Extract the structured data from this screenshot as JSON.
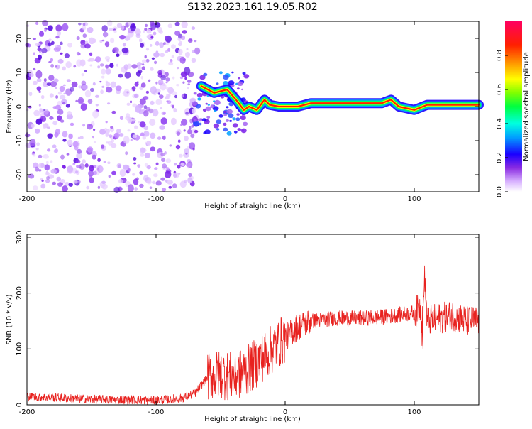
{
  "page_title": "S132.2023.161.19.05.R02",
  "colorbar": {
    "label": "Normalized spectral amplitude",
    "ticks": [
      "0.0",
      "0.2",
      "0.4",
      "0.6",
      "0.8"
    ],
    "tick_values": [
      0.0,
      0.2,
      0.4,
      0.6,
      0.8
    ],
    "range": [
      0,
      1
    ]
  },
  "chart_data": [
    {
      "type": "heatmap",
      "xlabel": "Height of straight line (km)",
      "ylabel": "Frequency (Hz)",
      "xlim": [
        -200,
        150
      ],
      "ylim": [
        -25,
        25
      ],
      "x_ticks": [
        "-200",
        "-100",
        "0",
        "100"
      ],
      "x_tick_values": [
        -200,
        -100,
        0,
        100
      ],
      "y_ticks": [
        "-20",
        "-10",
        "0",
        "10",
        "20"
      ],
      "y_tick_values": [
        -20,
        -10,
        0,
        10,
        20
      ],
      "signal_ridge": [
        {
          "x": -65,
          "y": 6
        },
        {
          "x": -55,
          "y": 4
        },
        {
          "x": -45,
          "y": 5
        },
        {
          "x": -38,
          "y": 2
        },
        {
          "x": -32,
          "y": -1
        },
        {
          "x": -28,
          "y": 0
        },
        {
          "x": -22,
          "y": -1
        },
        {
          "x": -16,
          "y": 2
        },
        {
          "x": -12,
          "y": 0.5
        },
        {
          "x": -5,
          "y": 0
        },
        {
          "x": 10,
          "y": 0
        },
        {
          "x": 20,
          "y": 1
        },
        {
          "x": 50,
          "y": 1
        },
        {
          "x": 75,
          "y": 1
        },
        {
          "x": 82,
          "y": 2
        },
        {
          "x": 88,
          "y": 0
        },
        {
          "x": 100,
          "y": -1
        },
        {
          "x": 110,
          "y": 0.5
        },
        {
          "x": 150,
          "y": 0.5
        }
      ],
      "noise_x_range": [
        -200,
        -68
      ],
      "noise_y_range": [
        -25,
        25
      ]
    },
    {
      "type": "line",
      "xlabel": "Height of straight line (km)",
      "ylabel": "SNR (10 * v/v)",
      "xlim": [
        -200,
        150
      ],
      "ylim": [
        0,
        305
      ],
      "x_ticks": [
        "-200",
        "-100",
        "0",
        "100"
      ],
      "x_tick_values": [
        -200,
        -100,
        0,
        100
      ],
      "y_ticks": [
        "0",
        "100",
        "200",
        "300"
      ],
      "y_tick_values": [
        0,
        100,
        200,
        300
      ],
      "series": [
        {
          "color": "#e8221f",
          "x": [
            -200,
            -150,
            -100,
            -80,
            -70,
            -60,
            -50,
            -40,
            -30,
            -20,
            -10,
            0,
            10,
            20,
            40,
            60,
            80,
            90,
            100,
            105,
            107,
            108,
            110,
            120,
            130,
            140,
            150
          ],
          "y": [
            15,
            10,
            8,
            12,
            20,
            50,
            55,
            50,
            60,
            80,
            100,
            120,
            140,
            150,
            155,
            155,
            158,
            162,
            165,
            175,
            90,
            230,
            150,
            155,
            160,
            150,
            150
          ]
        }
      ]
    }
  ]
}
